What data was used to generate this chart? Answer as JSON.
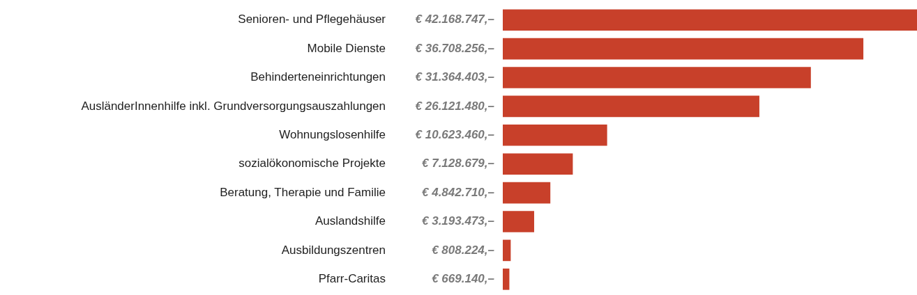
{
  "chart_data": {
    "type": "bar",
    "orientation": "horizontal",
    "categories": [
      "Senioren- und Pflegehäuser",
      "Mobile Dienste",
      "Behinderteneinrichtungen",
      "AusländerInnenhilfe inkl. Grundversorgungsauszahlungen",
      "Wohnungslosenhilfe",
      "sozialökonomische Projekte",
      "Beratung, Therapie und Familie",
      "Auslandshilfe",
      "Ausbildungszentren",
      "Pfarr-Caritas"
    ],
    "values": [
      42168747,
      36708256,
      31364403,
      26121480,
      10623460,
      7128679,
      4842710,
      3193473,
      808224,
      669140
    ],
    "value_labels": [
      "€ 42.168.747,–",
      "€ 36.708.256,–",
      "€ 31.364.403,–",
      "€ 26.121.480,–",
      "€ 10.623.460,–",
      "€ 7.128.679,–",
      "€ 4.842.710,–",
      "€ 3.193.473,–",
      "€ 808.224,–",
      "€ 669.140,–"
    ],
    "color": "#c8402a",
    "grid": false,
    "legend": false
  }
}
